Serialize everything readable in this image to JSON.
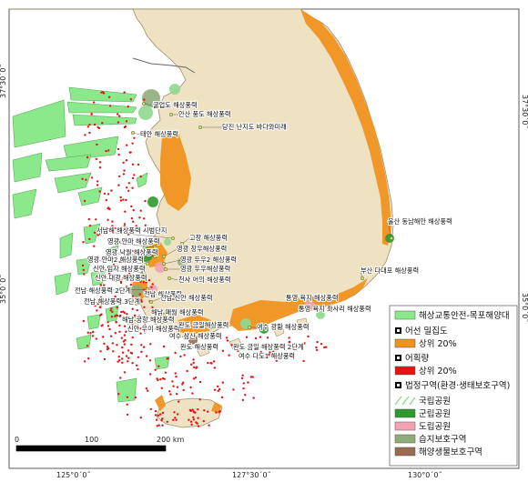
{
  "map": {
    "coords": {
      "lat_top": "37°30´0˝",
      "lat_bottom": "35°0´0˝",
      "lon_left": "125°0´0˝",
      "lon_mid": "127°30´0˝",
      "lon_right": "130°0´0˝"
    },
    "scale": {
      "zero": "0",
      "mid": "100",
      "end": "200 km"
    },
    "colors": {
      "sea": "#ffffff",
      "land": "#eee2c3",
      "coast": "#a08c6a",
      "traffic_zone": "#8be88b",
      "fishing_density": "#f0921f",
      "catch": "#e41414",
      "national_park": "#8ed88e",
      "county_park": "#2d9a2d",
      "provincial_park": "#f2a3b3",
      "wetland": "#8fad7a",
      "marine_protected": "#9a6b4f"
    },
    "wind_farm_labels": [
      "굴업도 해상풍력",
      "안산 풍도 해상풍력",
      "당진 난지도 바다와미래",
      "태안 해상풍력",
      "서남해 해상풍력 시범단지",
      "고창 해상풍력",
      "영광 안마 해상풍력",
      "영광 창우해상풍력",
      "영광 낙월 해상풍력",
      "영광 두우2 해상풍력",
      "영광 안마2 해상풍력",
      "영광 두우해상풍력",
      "신안 임자 해상풍력",
      "신안 대광 해상풍력",
      "전남 해상풍력 2단계",
      "전남 해상풍력",
      "전남 해상풍력 3단계",
      "전남 신안 해상풍력",
      "해남 매월 해상풍력",
      "해남 궁항 해상풍력",
      "신안 우이 해상풍력",
      "완도 금일해상풍력",
      "여수 삼산 해상풍력",
      "여수 광황 해상풍력",
      "완도 해상풍력",
      "완도 금일 해상풍력 2단계",
      "여수 다도1 해상풍력",
      "통영 욕지 해상풍력",
      "통영 욕지 좌사리 해상풍력",
      "부산 다대포 해상풍력",
      "울산 동남해안 해상풍력",
      "천사 어의 해상풍력"
    ],
    "legend": {
      "traffic_zone": "해상교통안전-목포해양대",
      "fishing_header": "어선 밀집도",
      "fishing_top": "상위 20%",
      "catch_header": "어획량",
      "catch_top": "상위 20%",
      "legal_header": "법정구역(환경·생태보호구역)",
      "national_park": "국립공원",
      "county_park": "군립공원",
      "provincial_park": "도립공원",
      "wetland": "습지보호구역",
      "marine_protected": "해양생물보호구역"
    }
  }
}
